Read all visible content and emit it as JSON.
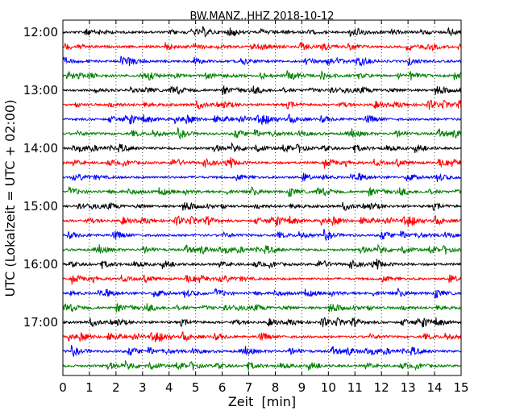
{
  "chart_data": {
    "type": "line",
    "title": "BW.MANZ..HHZ 2018-10-12",
    "xlabel": "Zeit  [min]",
    "ylabel": "UTC (Lokalzeit = UTC + 02:00)",
    "xlim": [
      0,
      15
    ],
    "x_ticks": [
      "0",
      "1",
      "2",
      "3",
      "4",
      "5",
      "6",
      "7",
      "8",
      "9",
      "10",
      "11",
      "12",
      "13",
      "14",
      "15"
    ],
    "y_tick_labels": [
      "12:00",
      "13:00",
      "14:00",
      "15:00",
      "16:00",
      "17:00"
    ],
    "grid": "vertical dotted at each minute",
    "trace_interval_minutes": 15,
    "colors_cycle": [
      "#000000",
      "#ff0000",
      "#0000ff",
      "#007f00"
    ],
    "traces": [
      {
        "start": "12:00",
        "color": "#000000"
      },
      {
        "start": "12:15",
        "color": "#ff0000"
      },
      {
        "start": "12:30",
        "color": "#0000ff"
      },
      {
        "start": "12:45",
        "color": "#007f00"
      },
      {
        "start": "13:00",
        "color": "#000000"
      },
      {
        "start": "13:15",
        "color": "#ff0000"
      },
      {
        "start": "13:30",
        "color": "#0000ff"
      },
      {
        "start": "13:45",
        "color": "#007f00"
      },
      {
        "start": "14:00",
        "color": "#000000"
      },
      {
        "start": "14:15",
        "color": "#ff0000"
      },
      {
        "start": "14:30",
        "color": "#0000ff"
      },
      {
        "start": "14:45",
        "color": "#007f00"
      },
      {
        "start": "15:00",
        "color": "#000000"
      },
      {
        "start": "15:15",
        "color": "#ff0000"
      },
      {
        "start": "15:30",
        "color": "#0000ff"
      },
      {
        "start": "15:45",
        "color": "#007f00"
      },
      {
        "start": "16:00",
        "color": "#000000"
      },
      {
        "start": "16:15",
        "color": "#ff0000"
      },
      {
        "start": "16:30",
        "color": "#0000ff"
      },
      {
        "start": "16:45",
        "color": "#007f00"
      },
      {
        "start": "17:00",
        "color": "#000000"
      },
      {
        "start": "17:15",
        "color": "#ff0000"
      },
      {
        "start": "17:30",
        "color": "#0000ff"
      },
      {
        "start": "17:45",
        "color": "#007f00"
      }
    ]
  }
}
